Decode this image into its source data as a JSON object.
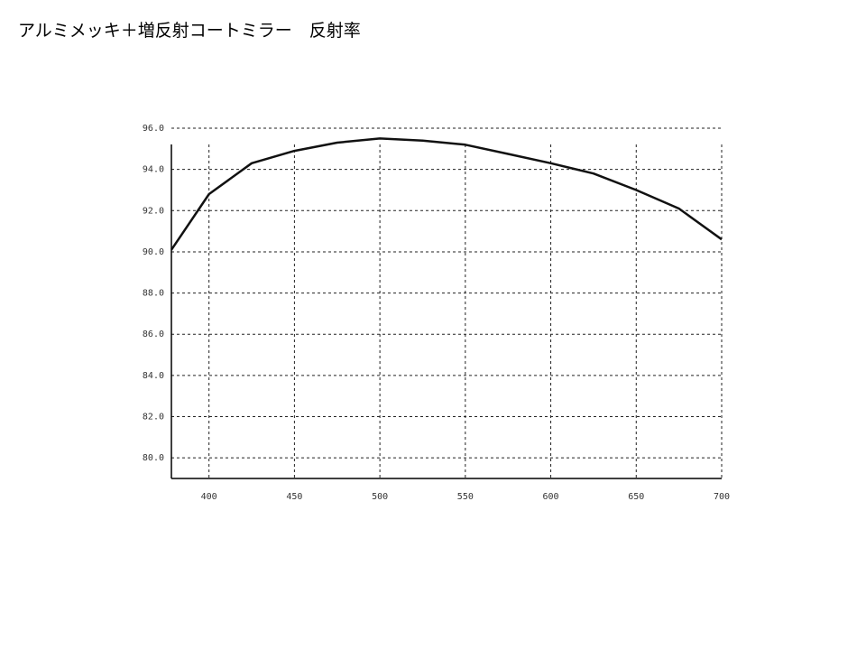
{
  "chart_data": {
    "type": "line",
    "title": "アルミメッキ＋増反射コートミラー　反射率",
    "x": [
      378,
      400,
      425,
      450,
      475,
      500,
      525,
      550,
      575,
      600,
      625,
      650,
      675,
      700
    ],
    "values": [
      90.1,
      92.8,
      94.3,
      94.9,
      95.3,
      95.5,
      95.4,
      95.2,
      94.75,
      94.3,
      93.8,
      93.0,
      92.1,
      90.6
    ],
    "color": "#111111",
    "xlim": [
      378,
      700
    ],
    "xticks": [
      400,
      450,
      500,
      550,
      600,
      650,
      700
    ],
    "ylim": [
      79,
      96
    ],
    "yticks": [
      {
        "value": 80,
        "label": "80.0"
      },
      {
        "value": 82,
        "label": "82.0"
      },
      {
        "value": 84,
        "label": "84.0"
      },
      {
        "value": 86,
        "label": "86.0"
      },
      {
        "value": 88,
        "label": "88.0"
      },
      {
        "value": 90,
        "label": "90.0"
      },
      {
        "value": 92,
        "label": "92.0"
      },
      {
        "value": 94,
        "label": "94.0"
      },
      {
        "value": 96,
        "label": "96.0"
      }
    ],
    "grid": true
  }
}
